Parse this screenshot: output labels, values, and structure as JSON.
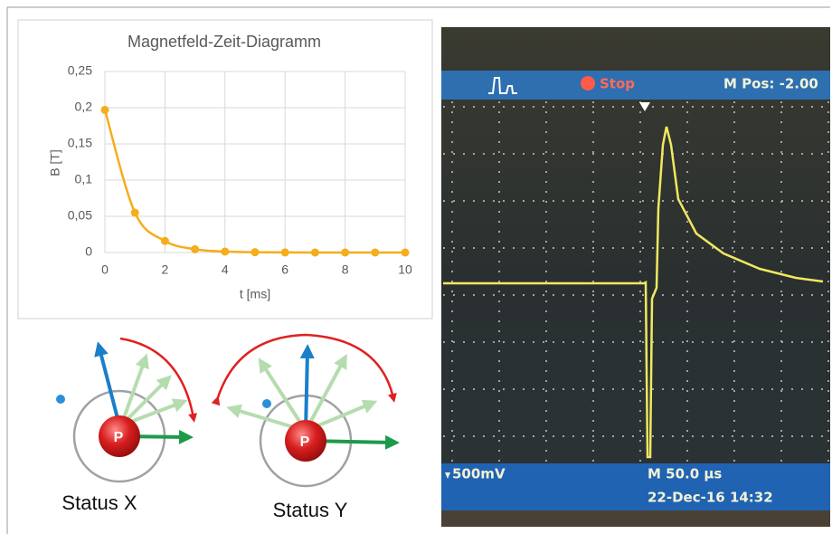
{
  "chart_data": {
    "type": "line",
    "title": "Magnetfeld-Zeit-Diagramm",
    "x_label": "t [ms]",
    "y_label": "B [T]",
    "x": [
      0,
      1,
      2,
      3,
      4,
      5,
      6,
      7,
      8,
      9,
      10
    ],
    "values": [
      0.197,
      0.055,
      0.016,
      0.0045,
      0.0013,
      0.0004,
      0.0001,
      0,
      0,
      0,
      0
    ],
    "color": "#f5ad1b",
    "grid": true,
    "xlim": [
      0,
      10
    ],
    "xticks": [
      0,
      2,
      4,
      6,
      8,
      10
    ],
    "ylim": [
      0,
      0.25
    ],
    "yticks": [
      0,
      {
        "value": 0.05,
        "label": "0,05"
      },
      {
        "value": 0.1,
        "label": "0,1"
      },
      {
        "value": 0.15,
        "label": "0,15"
      },
      {
        "value": 0.2,
        "label": "0,2"
      },
      {
        "value": 0.25,
        "label": "0,25"
      }
    ]
  },
  "diagrams": [
    {
      "label": "Status X",
      "nucleus": "P"
    },
    {
      "label": "Status Y",
      "nucleus": "P"
    }
  ],
  "oscilloscope": {
    "status": "Stop",
    "position": "M Pos: -2.00",
    "scale": "500mV",
    "timebase": "M 50.0 µs",
    "timestamp": "22-Dec-16 14:32"
  }
}
